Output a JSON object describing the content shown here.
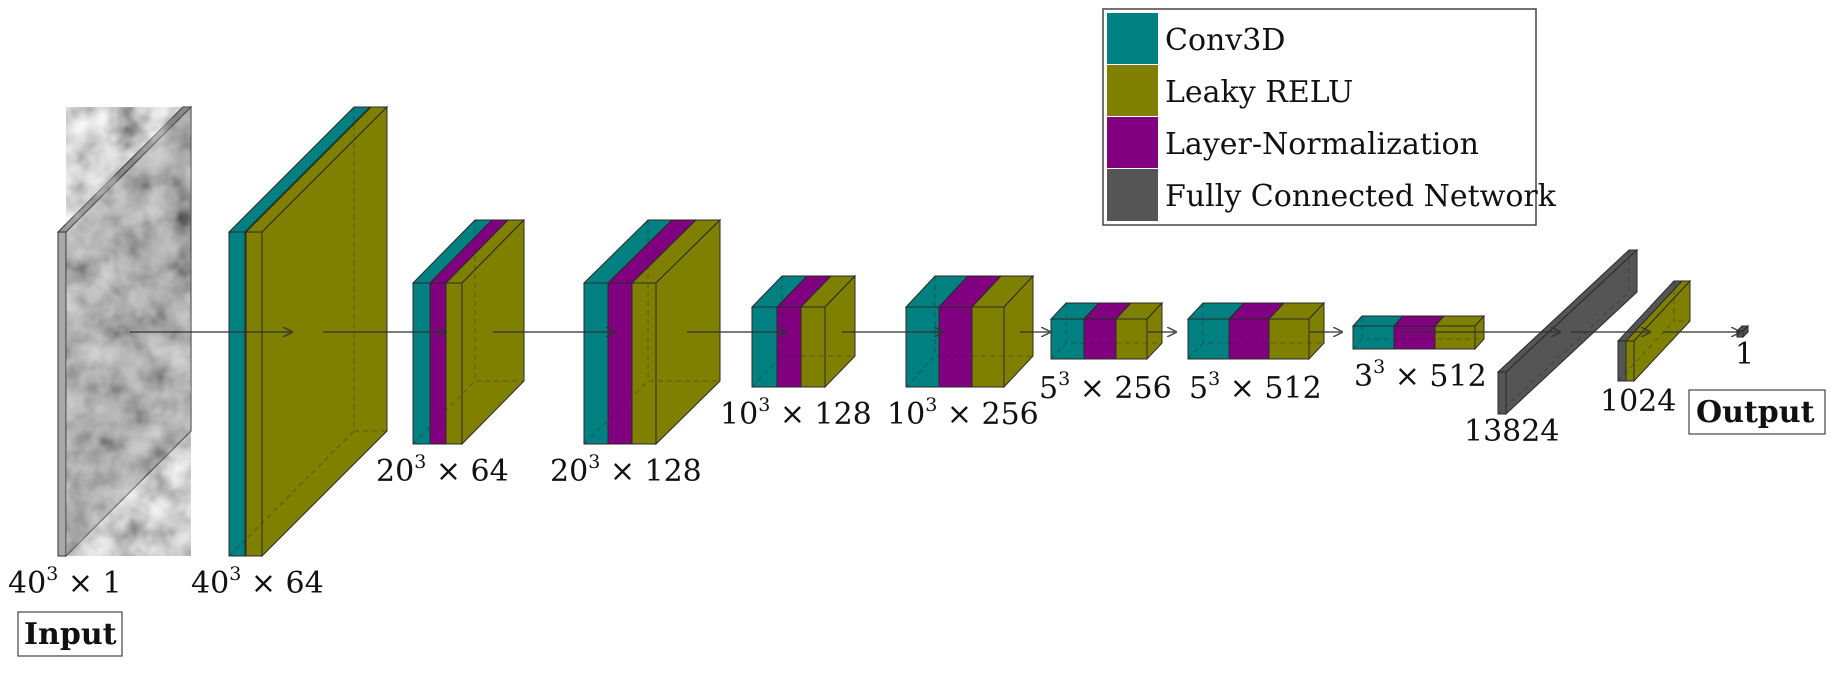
{
  "colors": {
    "conv3d": "#008080",
    "leaky_relu": "#808000",
    "layer_norm": "#800080",
    "fully_connected": "#555555"
  },
  "legend": [
    {
      "key": "conv3d",
      "label": "Conv3D"
    },
    {
      "key": "leaky_relu",
      "label": "Leaky RELU"
    },
    {
      "key": "layer_norm",
      "label": "Layer-Normalization"
    },
    {
      "key": "fully_connected",
      "label": "Fully Connected Network"
    }
  ],
  "layers": [
    {
      "id": "input",
      "label": {
        "base": "40",
        "exp": "3",
        "rest": " × 1"
      }
    },
    {
      "id": "block1",
      "label": {
        "base": "40",
        "exp": "3",
        "rest": " × 64"
      }
    },
    {
      "id": "block2",
      "label": {
        "base": "20",
        "exp": "3",
        "rest": " × 64"
      }
    },
    {
      "id": "block3",
      "label": {
        "base": "20",
        "exp": "3",
        "rest": " × 128"
      }
    },
    {
      "id": "block4",
      "label": {
        "base": "10",
        "exp": "3",
        "rest": " × 128"
      }
    },
    {
      "id": "block5",
      "label": {
        "base": "10",
        "exp": "3",
        "rest": " × 256"
      }
    },
    {
      "id": "block6",
      "label": {
        "base": "5",
        "exp": "3",
        "rest": " × 256"
      }
    },
    {
      "id": "block7",
      "label": {
        "base": "5",
        "exp": "3",
        "rest": " × 512"
      }
    },
    {
      "id": "block8",
      "label": {
        "base": "3",
        "exp": "3",
        "rest": " × 512"
      }
    },
    {
      "id": "fc1",
      "label": {
        "base": "13824",
        "exp": "",
        "rest": ""
      }
    },
    {
      "id": "fc2",
      "label": {
        "base": "1024",
        "exp": "",
        "rest": ""
      }
    },
    {
      "id": "out",
      "label": {
        "base": "1",
        "exp": "",
        "rest": ""
      }
    }
  ],
  "input_caption": "Input",
  "output_caption": "Output"
}
